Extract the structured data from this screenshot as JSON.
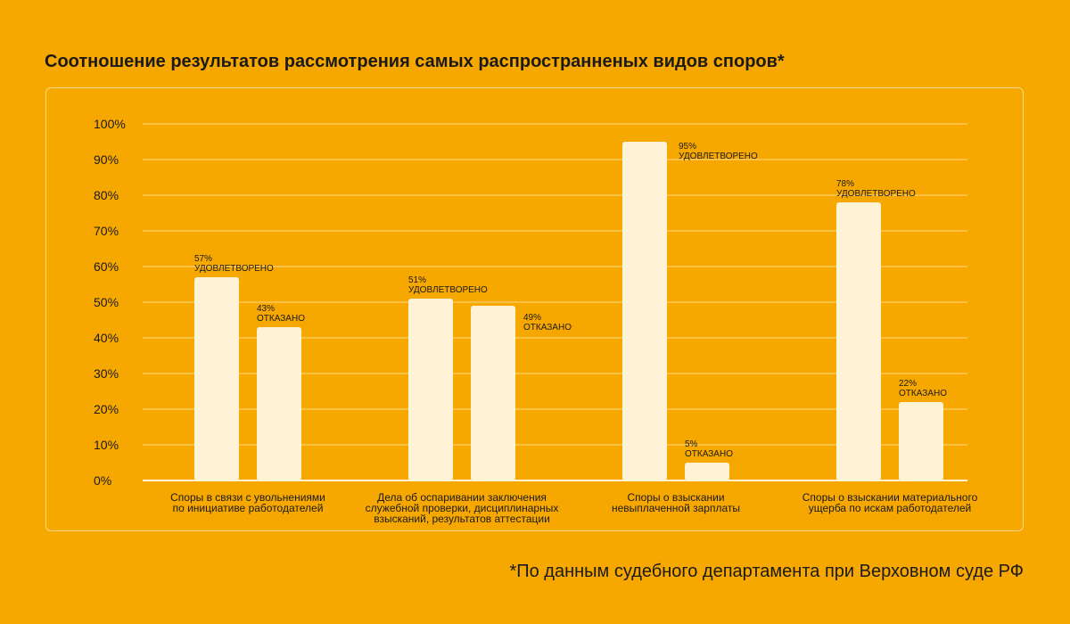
{
  "title": "Соотношение результатов рассмотрения самых распространненых видов споров*",
  "footnote": "*По данным судебного департамента при Верховном суде РФ",
  "colors": {
    "background": "#F7A800",
    "bar": "#FFF3D6",
    "text": "#1a1a1a",
    "grid": "#FFE6A8"
  },
  "chart_data": {
    "type": "bar",
    "title": "Соотношение результатов рассмотрения самых распространненых видов споров*",
    "ylim": [
      0,
      100
    ],
    "yticks": [
      "0%",
      "10%",
      "20%",
      "30%",
      "40%",
      "50%",
      "60%",
      "70%",
      "80%",
      "90%",
      "100%"
    ],
    "grid": true,
    "categories": [
      [
        "Споры в связи с увольнениями",
        "по инициативе работодателей"
      ],
      [
        "Дела об оспаривании заключения",
        "служебной проверки, дисциплинарных",
        "взысканий, результатов аттестации"
      ],
      [
        "Споры о взыскании",
        "невыплаченной зарплаты"
      ],
      [
        "Споры о взыскании материального",
        "ущерба по искам работодателей"
      ]
    ],
    "series": [
      {
        "name": "УДОВЛЕТВОРЕНО",
        "values": [
          57,
          51,
          95,
          78
        ],
        "labels": [
          "57%",
          "51%",
          "95%",
          "78%"
        ]
      },
      {
        "name": "ОТКАЗАНО",
        "values": [
          43,
          49,
          5,
          22
        ],
        "labels": [
          "43%",
          "49%",
          "5%",
          "22%"
        ]
      }
    ]
  }
}
